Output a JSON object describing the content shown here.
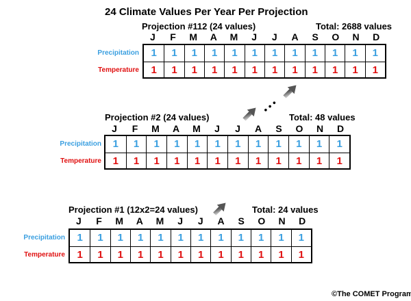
{
  "title": "24 Climate Values Per Year Per Projection",
  "months": [
    "J",
    "F",
    "M",
    "A",
    "M",
    "J",
    "J",
    "A",
    "S",
    "O",
    "N",
    "D"
  ],
  "row_labels": {
    "precipitation": "Precipitation",
    "temperature": "Temperature"
  },
  "cell_value": "1",
  "projections": [
    {
      "title": "Projection #112  (24 values)",
      "total": "Total: 2688 values"
    },
    {
      "title": "Projection #2  (24 values)",
      "total": "Total: 48 values"
    },
    {
      "title": "Projection #1 (12x2=24 values)",
      "total": "Total: 24 values"
    }
  ],
  "ellipsis": "• • •",
  "colors": {
    "precipitation": "#3a9fe0",
    "temperature": "#e01010",
    "arrow": "#555555"
  },
  "icons": [
    "arrow-up-right-icon"
  ],
  "copyright": "©The COMET Program"
}
